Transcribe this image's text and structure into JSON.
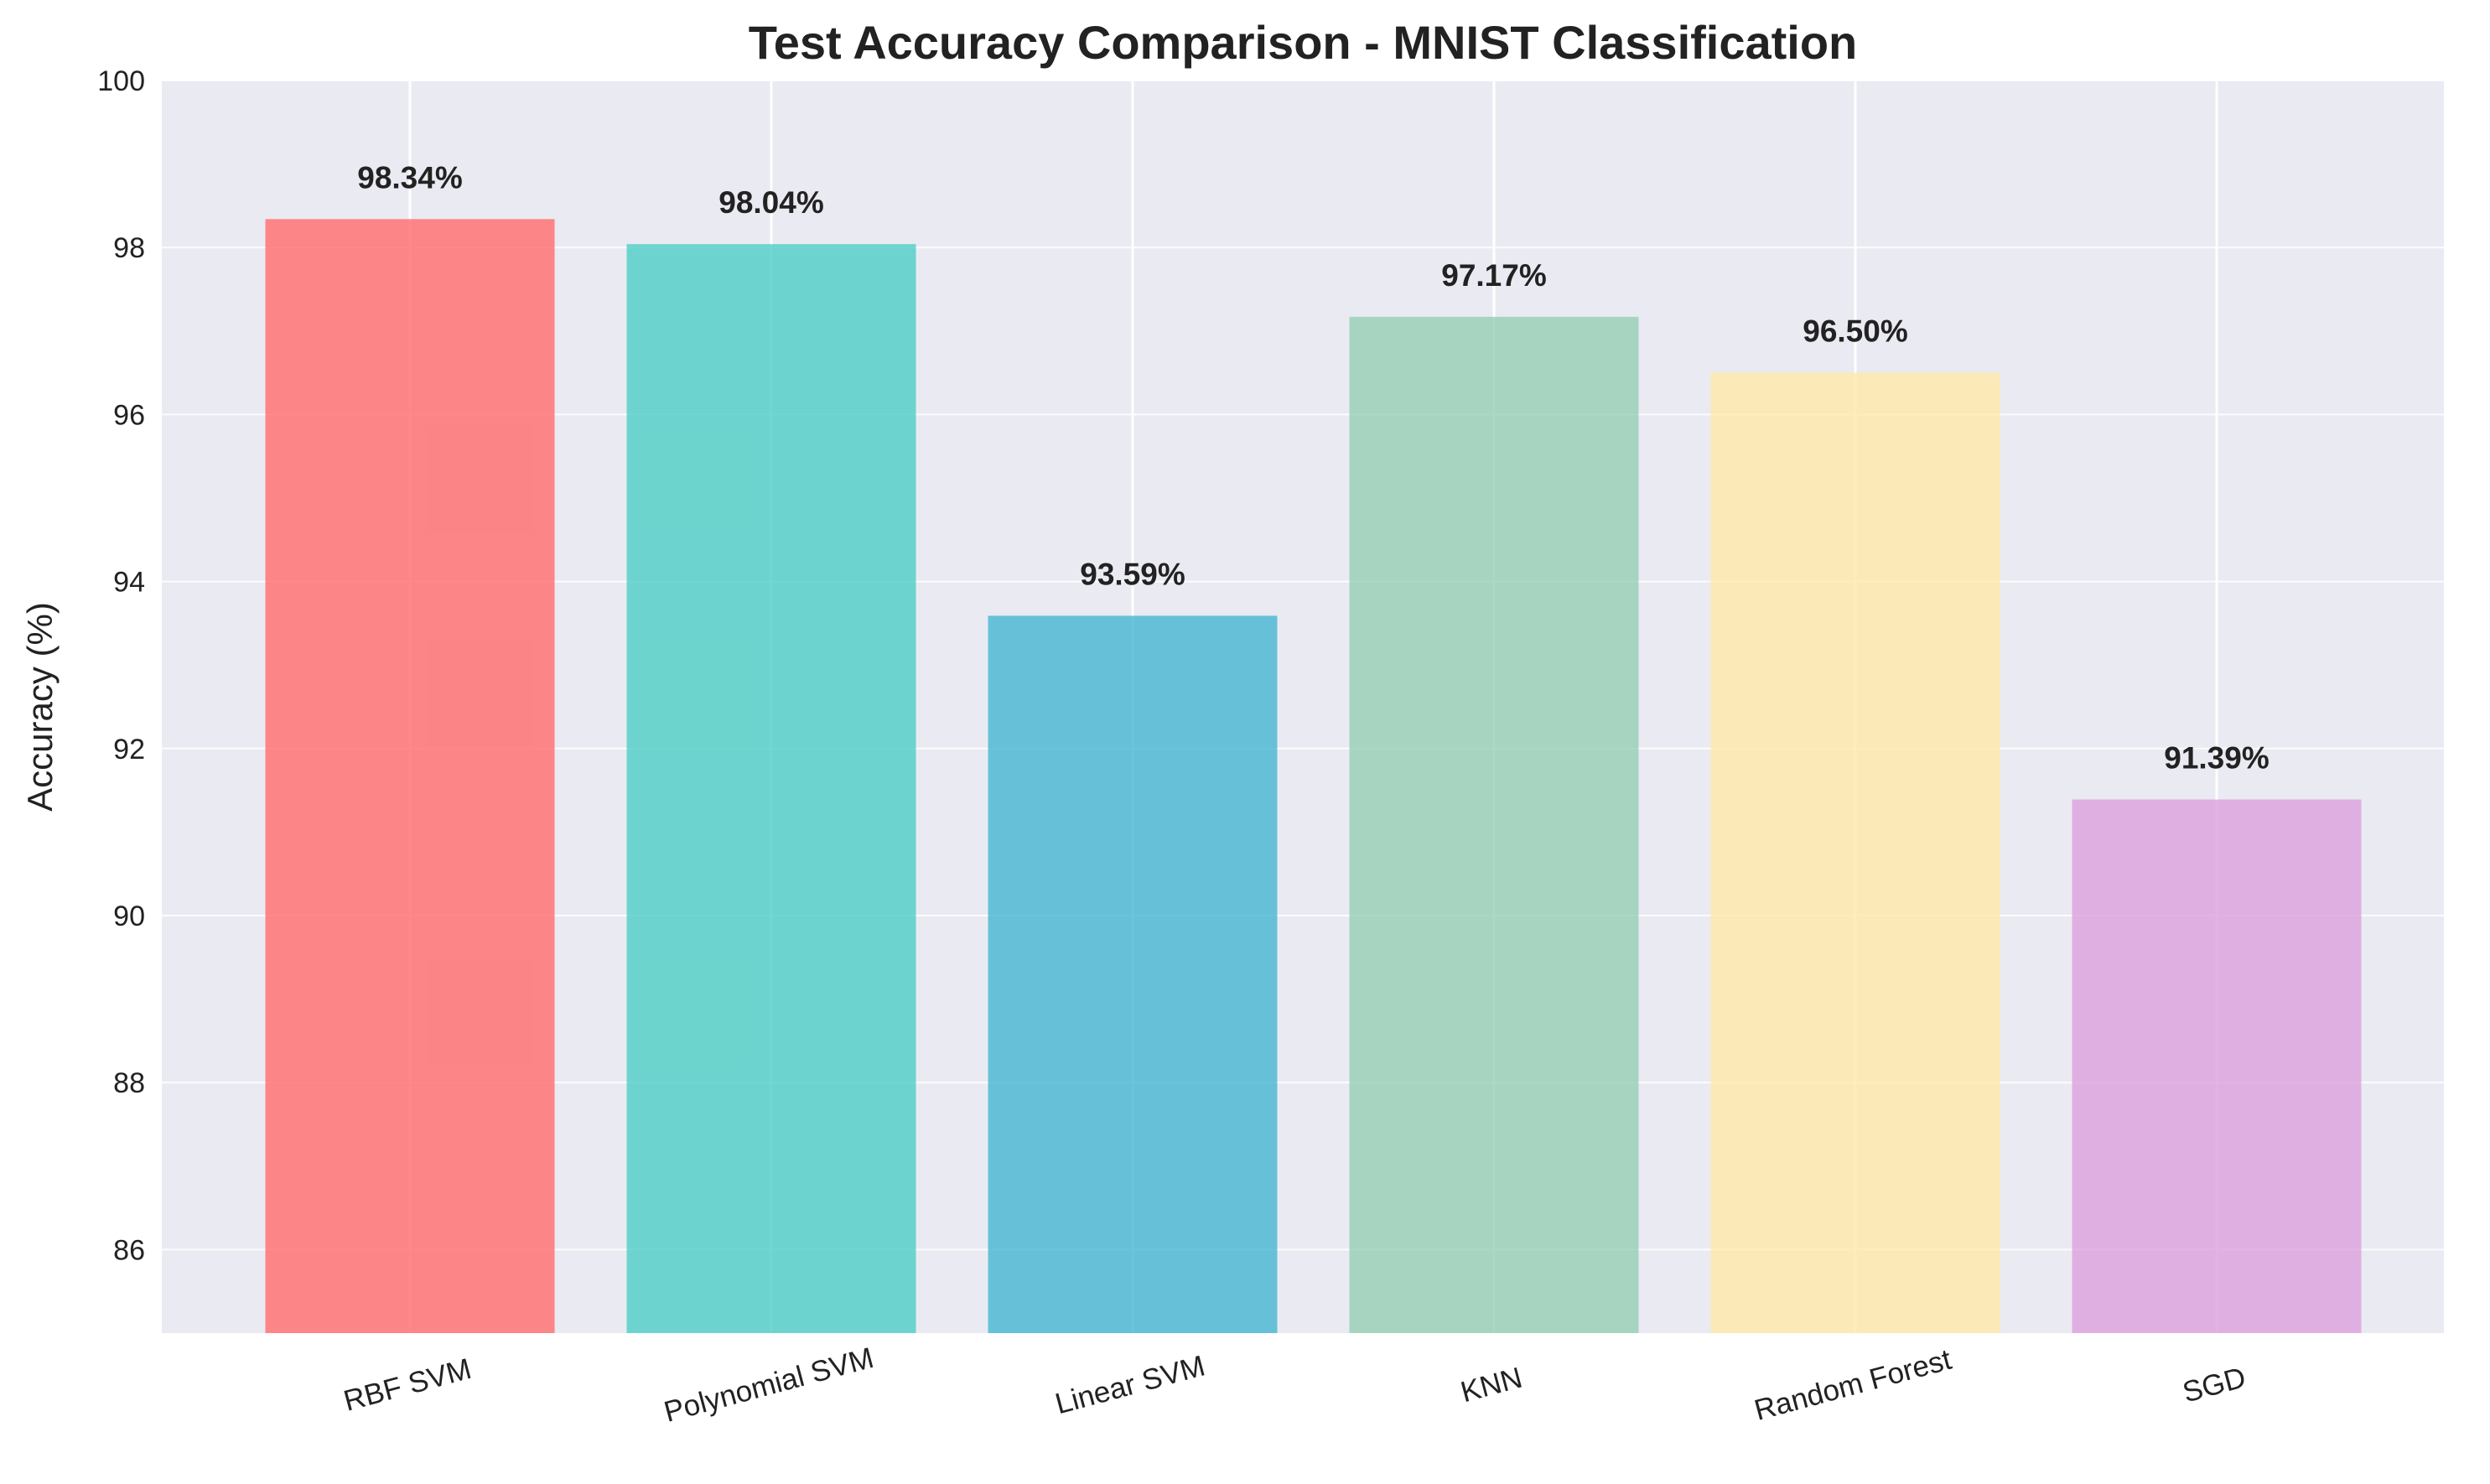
{
  "chart_data": {
    "type": "bar",
    "title": "Test Accuracy Comparison - MNIST Classification",
    "xlabel": "",
    "ylabel": "Accuracy (%)",
    "ylim": [
      85,
      100
    ],
    "yticks": [
      86,
      88,
      90,
      92,
      94,
      96,
      98,
      100
    ],
    "grid": true,
    "categories": [
      "RBF SVM",
      "Polynomial SVM",
      "Linear SVM",
      "KNN",
      "Random Forest",
      "SGD"
    ],
    "values": [
      98.34,
      98.04,
      93.59,
      97.17,
      96.5,
      91.39
    ],
    "value_labels": [
      "98.34%",
      "98.04%",
      "93.59%",
      "97.17%",
      "96.50%",
      "91.39%"
    ],
    "colors": [
      "#FF6B6B",
      "#4ECDC4",
      "#45B7D1",
      "#96CEB4",
      "#FFEAA7",
      "#DDA0DD"
    ],
    "bar_opacity": 0.8,
    "background_color": "#EAEAF2",
    "xtick_rotation_deg": -15
  }
}
